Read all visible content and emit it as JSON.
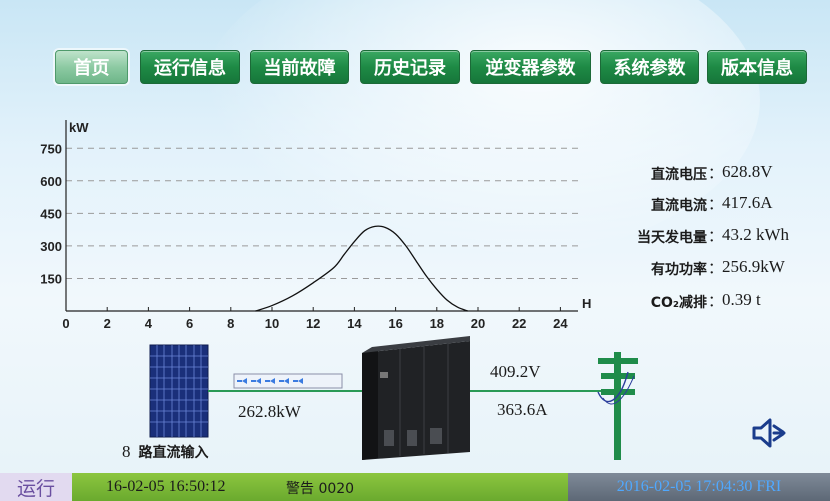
{
  "nav": {
    "items": [
      {
        "label": "首页",
        "active": true
      },
      {
        "label": "运行信息",
        "active": false
      },
      {
        "label": "当前故障",
        "active": false
      },
      {
        "label": "历史记录",
        "active": false
      },
      {
        "label": "逆变器参数",
        "active": false
      },
      {
        "label": "系统参数",
        "active": false
      },
      {
        "label": "版本信息",
        "active": false
      }
    ]
  },
  "stats": [
    {
      "label": "直流电压",
      "colon": "：",
      "value": "628.8V"
    },
    {
      "label": "直流电流",
      "colon": "：",
      "value": "417.6A"
    },
    {
      "label": "当天发电量",
      "colon": "：",
      "value": "43.2 kWh"
    },
    {
      "label": "有功功率",
      "colon": "：",
      "value": "256.9kW"
    },
    {
      "label": "CO₂减排",
      "colon": "：",
      "value": "0.39 t"
    }
  ],
  "flow": {
    "dc_power": "262.8kW",
    "ac_voltage": "409.2V",
    "ac_current": "363.6A",
    "dc_inputs_count": "8",
    "dc_inputs_label": "路直流输入"
  },
  "status_bar": {
    "mode": "运行",
    "event_time": "16-02-05 16:50:12",
    "warning": "警告 0020",
    "clock": "2016-02-05 17:04:30 FRI"
  },
  "colors": {
    "nav_green": "#1e8a45",
    "curve": "#111111",
    "grid_line": "#9a9a9a",
    "status_green": "#7ab83a",
    "clock_text": "#4fa8ff",
    "tower_green": "#1f8c4a",
    "speaker_blue": "#1a3c8c"
  },
  "chart_data": {
    "type": "line",
    "ylabel": "kW",
    "xlabel": "H",
    "xlim": [
      0,
      25
    ],
    "ylim": [
      0,
      800
    ],
    "xticks": [
      0,
      2,
      4,
      6,
      8,
      10,
      12,
      14,
      16,
      18,
      20,
      22,
      24
    ],
    "yticks": [
      150,
      300,
      450,
      600,
      750
    ],
    "grid": true,
    "series": [
      {
        "x": [
          9.2,
          10,
          11,
          12,
          13,
          13.5,
          14,
          14.5,
          15,
          15.5,
          16,
          16.5,
          17,
          17.5,
          18,
          18.5,
          19,
          19.5
        ],
        "y": [
          0,
          25,
          70,
          130,
          200,
          260,
          320,
          370,
          390,
          385,
          355,
          300,
          230,
          160,
          100,
          50,
          18,
          0
        ]
      }
    ]
  }
}
